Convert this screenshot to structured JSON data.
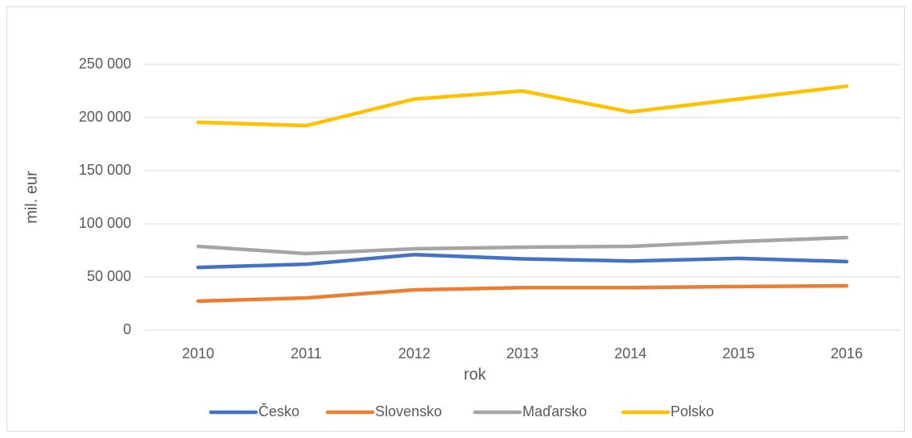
{
  "chart_data": {
    "type": "line",
    "x_label": "rok",
    "y_label": "mil. eur",
    "categories": [
      "2010",
      "2011",
      "2012",
      "2013",
      "2014",
      "2015",
      "2016"
    ],
    "series": [
      {
        "name": "Česko",
        "color": "#4472c4",
        "values": [
          59000,
          62000,
          71000,
          67000,
          65000,
          67500,
          64500
        ]
      },
      {
        "name": "Slovensko",
        "color": "#ed7d31",
        "values": [
          27300,
          30300,
          37900,
          40000,
          40000,
          41000,
          41700
        ]
      },
      {
        "name": "Maďarsko",
        "color": "#a5a5a5",
        "values": [
          78800,
          72000,
          76500,
          78000,
          78800,
          83300,
          87100
        ]
      },
      {
        "name": "Polsko",
        "color": "#ffc000",
        "values": [
          195500,
          192400,
          217400,
          225000,
          205300,
          217400,
          229500
        ]
      }
    ],
    "ylim": [
      0,
      250000
    ],
    "yticks": [
      0,
      {
        "value": 50000,
        "label": "50 000"
      },
      {
        "value": 100000,
        "label": "100 000"
      },
      {
        "value": 150000,
        "label": "150 000"
      },
      {
        "value": 200000,
        "label": "200 000"
      },
      {
        "value": 250000,
        "label": "250 000"
      }
    ],
    "grid": true,
    "legend": "bottom"
  }
}
